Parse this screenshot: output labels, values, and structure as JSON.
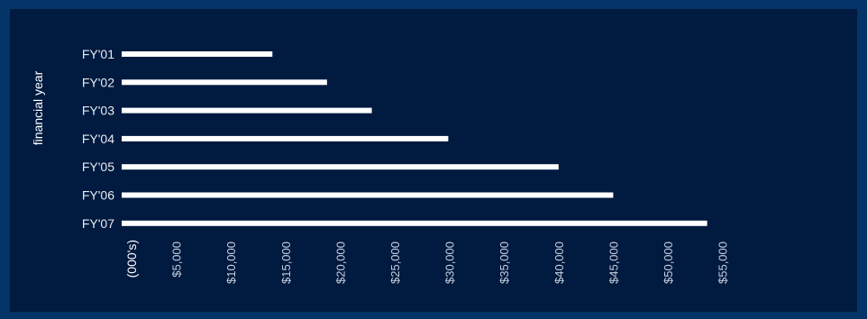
{
  "chart_data": {
    "type": "bar",
    "orientation": "horizontal",
    "categories": [
      "FY'01",
      "FY'02",
      "FY'03",
      "FY'04",
      "FY'05",
      "FY'06",
      "FY'07"
    ],
    "values": [
      13800,
      18800,
      22900,
      29900,
      40000,
      45000,
      53600
    ],
    "ylabel": "financial year",
    "xunit_label": "(000's)",
    "x_ticks": [
      "$5,000",
      "$10,000",
      "$15,000",
      "$20,000",
      "$25,000",
      "$30,000",
      "$35,000",
      "$40,000",
      "$45,000",
      "$50,000",
      "$55,000"
    ],
    "x_tick_values": [
      5000,
      10000,
      15000,
      20000,
      25000,
      30000,
      35000,
      40000,
      45000,
      50000,
      55000
    ],
    "xlim": [
      0,
      55000
    ],
    "grid": false,
    "colors": {
      "bar": "#ffffff",
      "plot_background": "#001a40",
      "page_background": "#043468"
    }
  }
}
